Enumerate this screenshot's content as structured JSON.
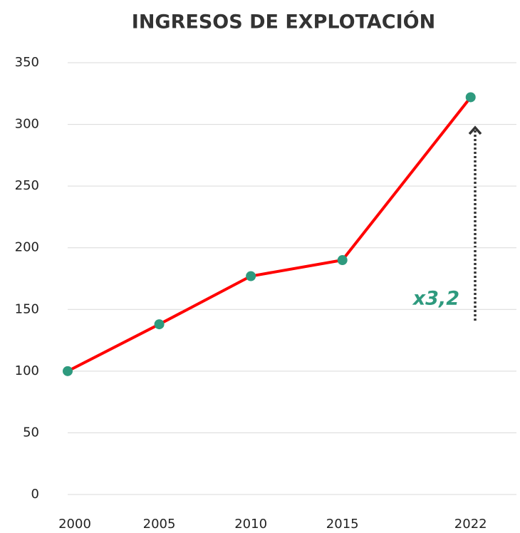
{
  "chart_data": {
    "type": "line",
    "title": "INGRESOS DE EXPLOTACIÓN",
    "x": [
      2000,
      2005,
      2010,
      2015,
      2022
    ],
    "series": [
      {
        "name": "Ingresos",
        "color": "#ff0000",
        "marker_color": "#2e9a7e",
        "values": [
          100,
          138,
          177,
          190,
          322
        ]
      }
    ],
    "xlim": [
      2000,
      2024.5
    ],
    "xticks": [
      2000,
      2005,
      2010,
      2015,
      2022
    ],
    "ylim": [
      0,
      350
    ],
    "yticks": [
      0,
      50,
      100,
      150,
      200,
      250,
      300,
      350
    ],
    "grid": true,
    "annotation": "x3,2",
    "annotation_color": "#2e9a7e"
  }
}
